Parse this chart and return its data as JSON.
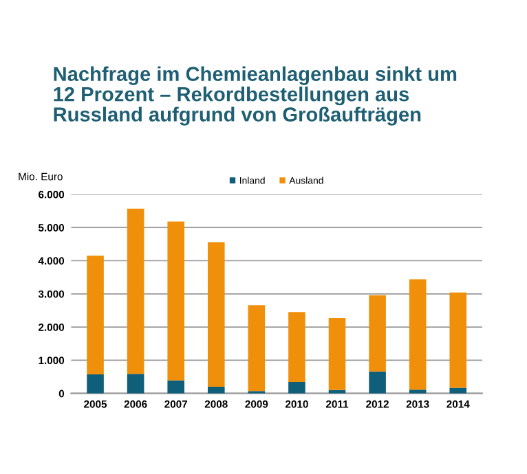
{
  "chart_data": {
    "type": "bar",
    "stacked": true,
    "title": "Nachfrage im Chemieanlagenbau sinkt um\n12 Prozent – Rekordbestellungen aus\nRussland aufgrund von Großaufträgen",
    "ylabel": "Mio. Euro",
    "categories": [
      "2005",
      "2006",
      "2007",
      "2008",
      "2009",
      "2010",
      "2011",
      "2012",
      "2013",
      "2014"
    ],
    "series": [
      {
        "name": "Inland",
        "color": "#0f5f7a",
        "values": [
          575,
          590,
          390,
          200,
          70,
          345,
          100,
          660,
          115,
          170
        ]
      },
      {
        "name": "Ausland",
        "color": "#f0900a",
        "values": [
          3575,
          4980,
          4790,
          4360,
          2590,
          2105,
          2170,
          2300,
          3325,
          2870
        ]
      }
    ],
    "ylim": [
      0,
      6000
    ],
    "yticks": [
      {
        "value": 0,
        "label": "0"
      },
      {
        "value": 1000,
        "label": "1.000"
      },
      {
        "value": 2000,
        "label": "2.000"
      },
      {
        "value": 3000,
        "label": "3.000"
      },
      {
        "value": 4000,
        "label": "4.000"
      },
      {
        "value": 5000,
        "label": "5.000"
      },
      {
        "value": 6000,
        "label": "6.000"
      }
    ],
    "grid": "y",
    "legend": "top"
  }
}
